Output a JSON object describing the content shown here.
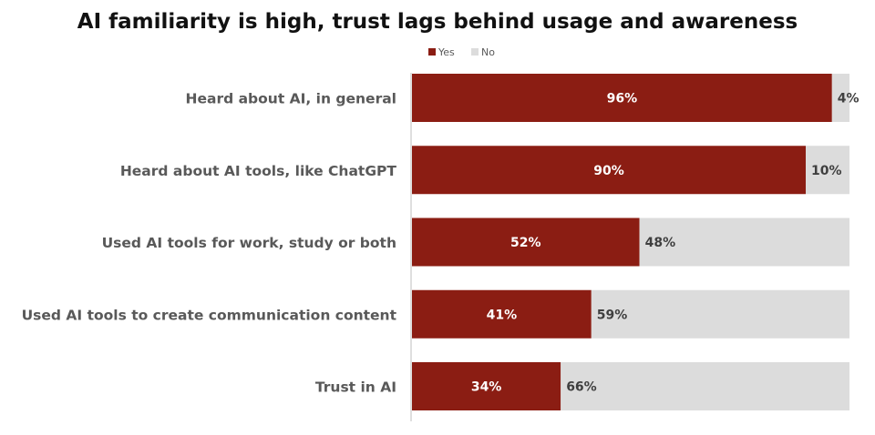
{
  "chart_data": {
    "type": "bar",
    "orientation": "horizontal",
    "stacked": true,
    "title": "AI familiarity is high, trust lags behind usage and awareness",
    "categories": [
      "Heard about AI, in general",
      "Heard about AI tools, like ChatGPT",
      "Used AI tools for work, study or both",
      "Used AI tools to create communication content",
      "Trust in AI"
    ],
    "series": [
      {
        "name": "Yes",
        "values": [
          96,
          90,
          52,
          41,
          34
        ],
        "color": "#8b1d13",
        "label_color": "#ffffff"
      },
      {
        "name": "No",
        "values": [
          4,
          10,
          48,
          59,
          66
        ],
        "color": "#dcdcdc",
        "label_color": "#3f3f3f"
      }
    ],
    "value_suffix": "%",
    "xlim": [
      0,
      100
    ],
    "legend_position": "top-center",
    "grid": false
  }
}
